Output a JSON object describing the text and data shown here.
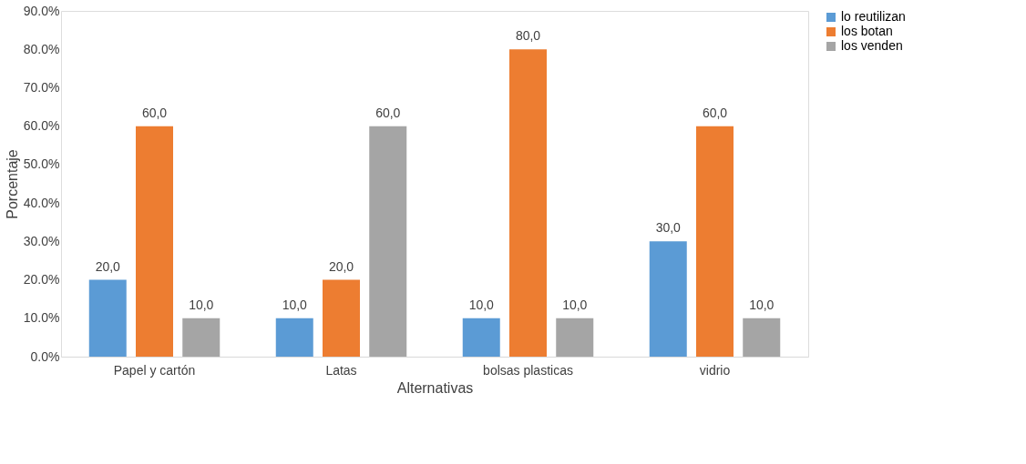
{
  "chart_data": {
    "type": "bar",
    "xlabel": "Alternativas",
    "ylabel": "Porcentaje",
    "categories": [
      "Papel y cartón",
      "Latas",
      "bolsas plasticas",
      "vidrio"
    ],
    "series": [
      {
        "name": "lo reutilizan",
        "color": "#5b9bd5",
        "values": [
          20,
          10,
          10,
          30
        ],
        "value_labels": [
          "20,0",
          "10,0",
          "10,0",
          "30,0"
        ]
      },
      {
        "name": "los botan",
        "color": "#ed7d31",
        "values": [
          60,
          20,
          80,
          60
        ],
        "value_labels": [
          "60,0",
          "20,0",
          "80,0",
          "60,0"
        ]
      },
      {
        "name": "los venden",
        "color": "#a5a5a5",
        "values": [
          10,
          60,
          10,
          10
        ],
        "value_labels": [
          "10,0",
          "60,0",
          "10,0",
          "10,0"
        ]
      }
    ],
    "ylim": [
      0,
      90
    ],
    "yticks": [
      {
        "value": 0,
        "label": "0.0%"
      },
      {
        "value": 10,
        "label": "10.0%"
      },
      {
        "value": 20,
        "label": "20.0%"
      },
      {
        "value": 30,
        "label": "30.0%"
      },
      {
        "value": 40,
        "label": "40.0%"
      },
      {
        "value": 50,
        "label": "50.0%"
      },
      {
        "value": 60,
        "label": "60.0%"
      },
      {
        "value": 70,
        "label": "70.0%"
      },
      {
        "value": 80,
        "label": "80.0%"
      },
      {
        "value": 90,
        "label": "90.0%"
      }
    ],
    "grid": false,
    "legend": "right"
  }
}
